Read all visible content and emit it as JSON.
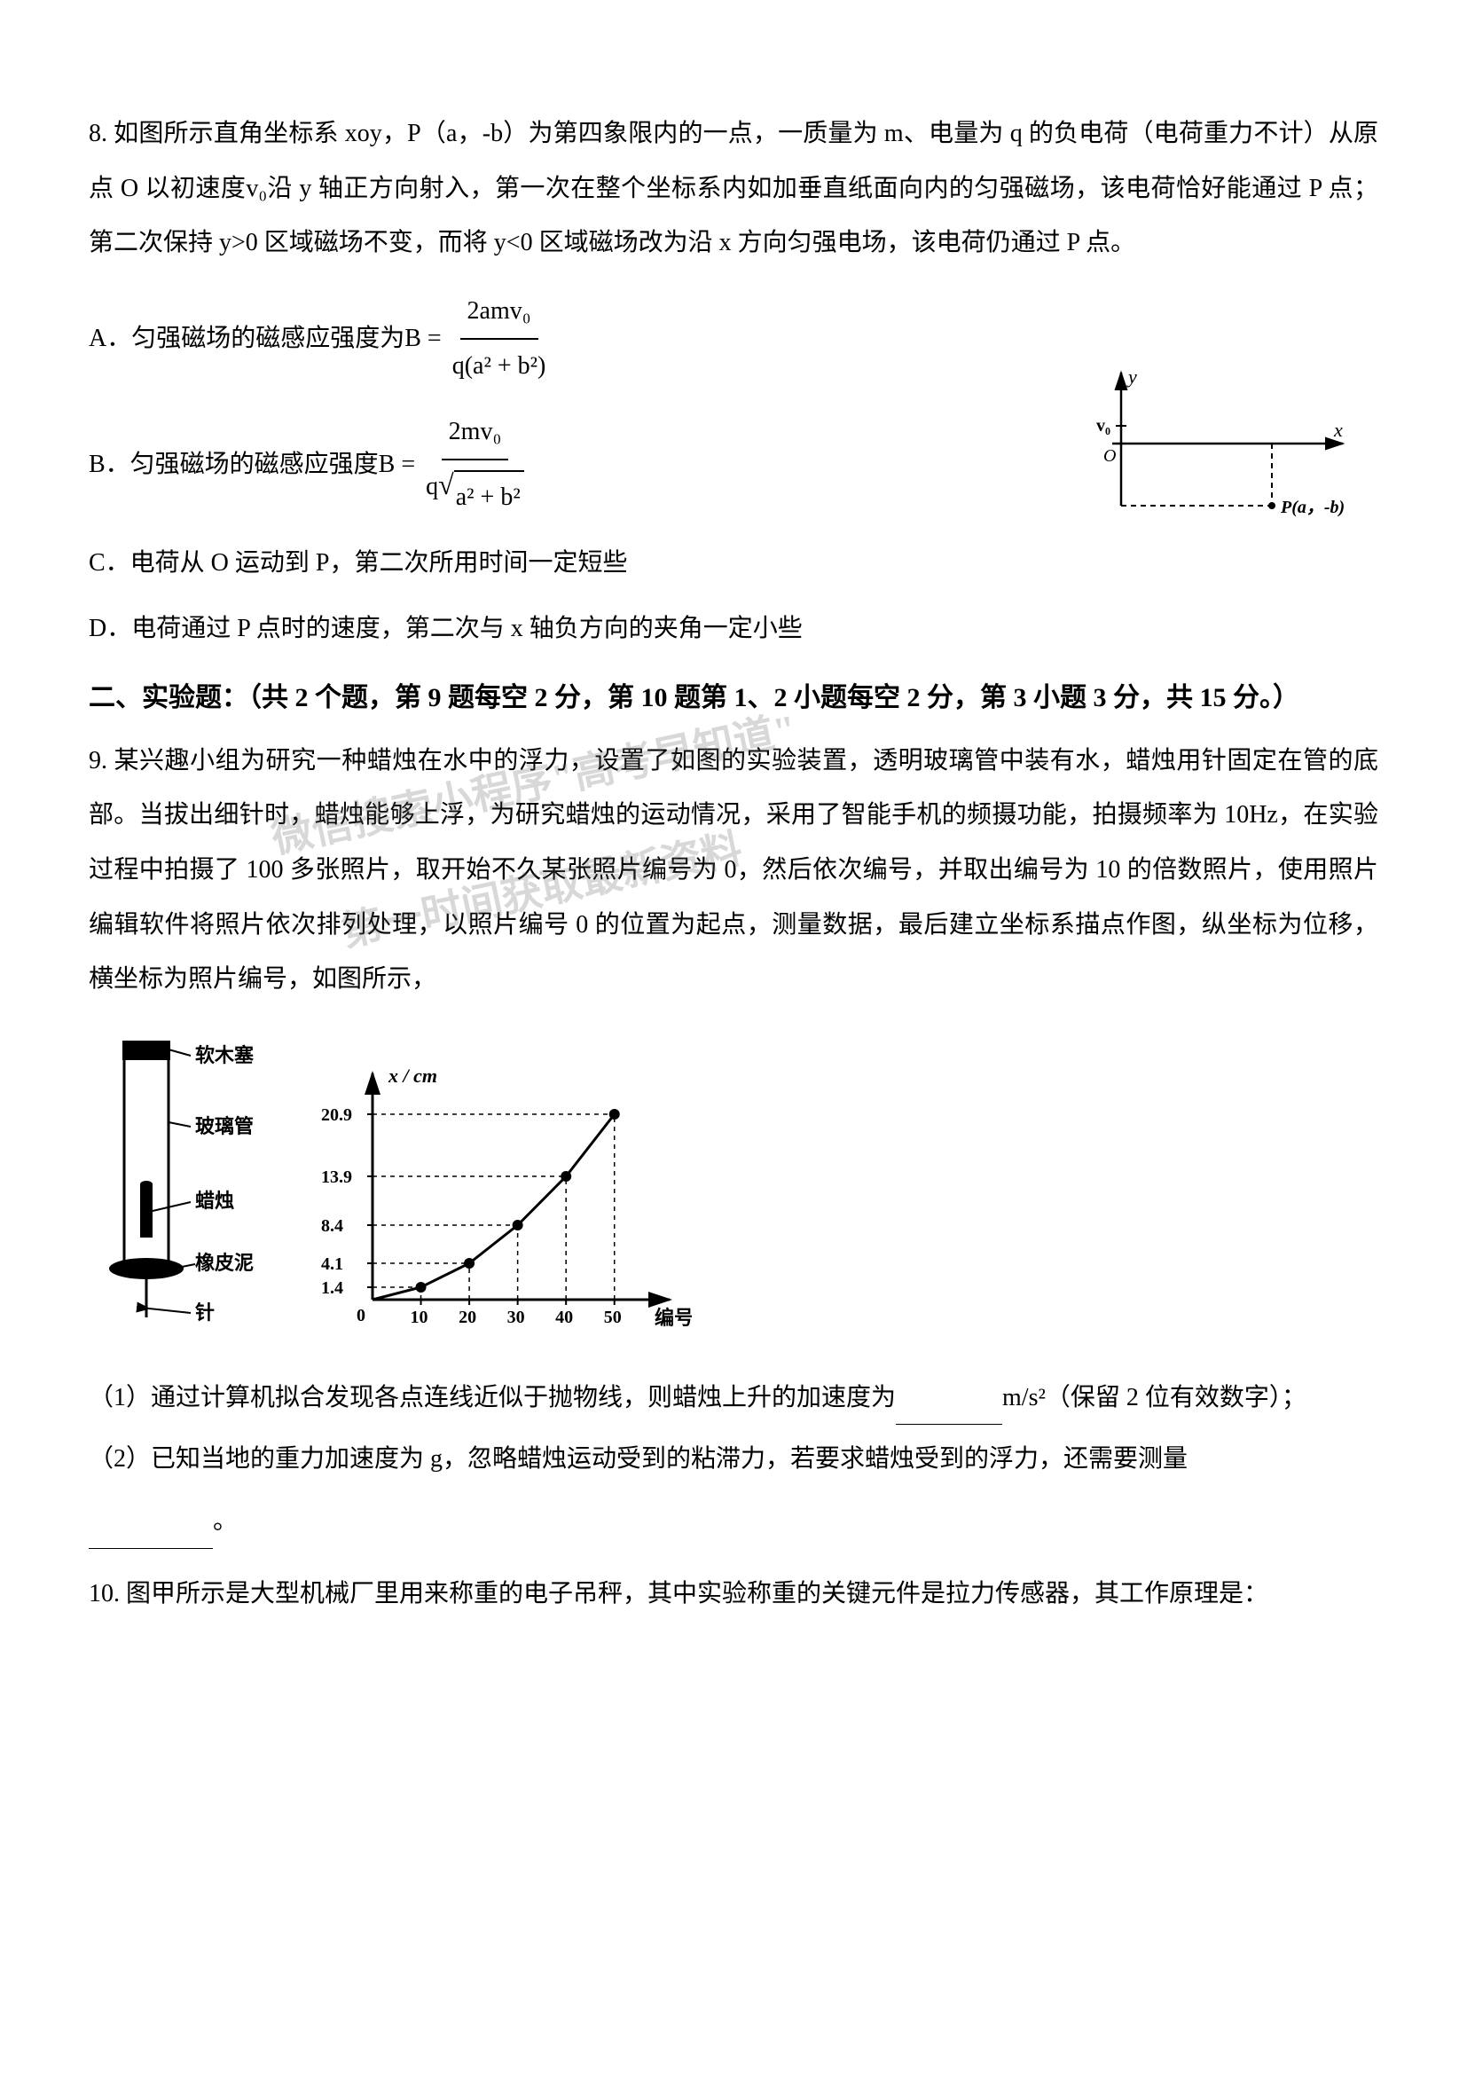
{
  "q8": {
    "stem": "8. 如图所示直角坐标系 xoy，P（a，-b）为第四象限内的一点，一质量为 m、电量为 q 的负电荷（电荷重力不计）从原点 O 以初速度v₀沿 y 轴正方向射入，第一次在整个坐标系内如加垂直纸面向内的匀强磁场，该电荷恰好能通过 P 点；第二次保持 y>0 区域磁场不变，而将 y<0 区域磁场改为沿 x 方向匀强电场，该电荷仍通过 P 点。",
    "optA_prefix": "A．匀强磁场的磁感应强度为B =",
    "optA_num": "2amv₀",
    "optA_den": "q(a² + b²)",
    "optB_prefix": "B．匀强磁场的磁感应强度B =",
    "optB_num": "2mv₀",
    "optB_den_q": "q",
    "optB_den_sqrt": "a² + b²",
    "optC": "C．电荷从 O 运动到 P，第二次所用时间一定短些",
    "optD": "D．电荷通过 P 点时的速度，第二次与 x 轴负方向的夹角一定小些",
    "diagram": {
      "colors": {
        "stroke": "#000000",
        "bg": "#ffffff"
      },
      "labels": {
        "y": "y",
        "x": "x",
        "v0": "v₀",
        "O": "O",
        "P": "P(a，-b)"
      }
    }
  },
  "section2_heading": "二、实验题：（共 2 个题，第 9 题每空 2 分，第 10 题第 1、2 小题每空 2 分，第 3 小题 3 分，共 15 分。）",
  "q9": {
    "stem": "9. 某兴趣小组为研究一种蜡烛在水中的浮力，设置了如图的实验装置，透明玻璃管中装有水，蜡烛用针固定在管的底部。当拔出细针时，蜡烛能够上浮，为研究蜡烛的运动情况，采用了智能手机的频摄功能，拍摄频率为 10Hz，在实验过程中拍摄了 100 多张照片，取开始不久某张照片编号为 0，然后依次编号，并取出编号为 10 的倍数照片，使用照片编辑软件将照片依次排列处理，以照片编号 0 的位置为起点，测量数据，最后建立坐标系描点作图，纵坐标为位移，横坐标为照片编号，如图所示，",
    "apparatus_labels": {
      "cork": "软木塞",
      "tube": "玻璃管",
      "candle": "蜡烛",
      "putty": "橡皮泥",
      "needle": "针"
    },
    "chart": {
      "type": "line",
      "x_label": "编号",
      "y_label": "x / cm",
      "x_ticks": [
        10,
        20,
        30,
        40,
        50
      ],
      "y_ticks": [
        0,
        1.4,
        4.1,
        8.4,
        13.9,
        20.9
      ],
      "points": [
        {
          "x": 10,
          "y": 1.4
        },
        {
          "x": 20,
          "y": 4.1
        },
        {
          "x": 30,
          "y": 8.4
        },
        {
          "x": 40,
          "y": 13.9
        },
        {
          "x": 50,
          "y": 20.9
        }
      ],
      "colors": {
        "axis": "#000000",
        "line": "#000000",
        "marker": "#000000",
        "grid": "#000000"
      },
      "line_width": 3,
      "marker_size": 6
    },
    "sub1_pre": "（1）通过计算机拟合发现各点连线近似于抛物线，则蜡烛上升的加速度为",
    "sub1_post": "m/s²（保留 2 位有效数字）；",
    "sub2_pre": "（2）已知当地的重力加速度为 g，忽略蜡烛运动受到的粘滞力，若要求蜡烛受到的浮力，还需要测量",
    "sub2_post": "。"
  },
  "q10": {
    "stem": "10. 图甲所示是大型机械厂里用来称重的电子吊秤，其中实验称重的关键元件是拉力传感器，其工作原理是："
  },
  "watermarks": {
    "w1": "微信搜索小程序\"高考早知道\"",
    "w2": "第一时间获取最新资料"
  },
  "colors": {
    "text": "#000000",
    "background": "#ffffff",
    "watermark": "rgba(100,100,100,0.25)"
  }
}
